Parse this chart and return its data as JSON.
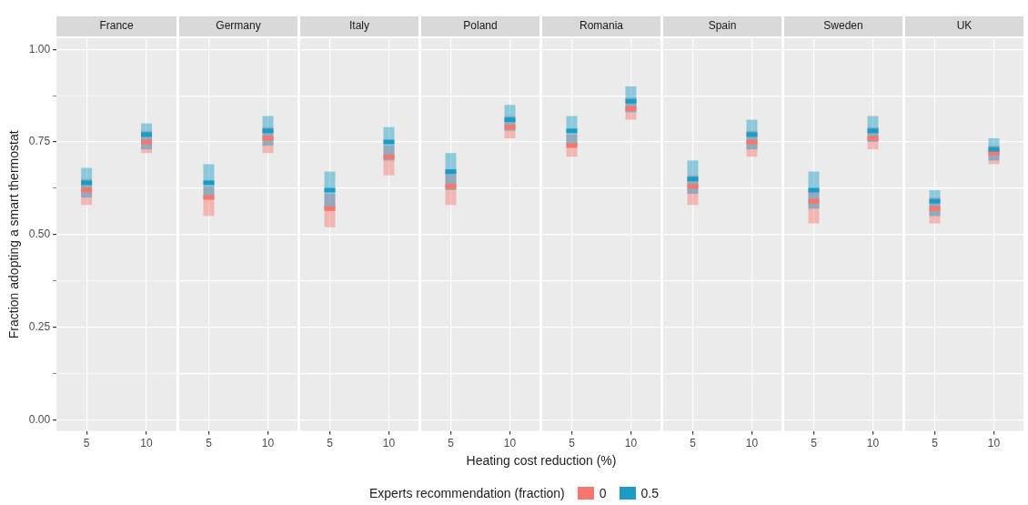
{
  "chart_data": [
    {
      "type": "scatter",
      "marker": "square",
      "title": "France",
      "ylabel": "Fraction adopting a smart thermostat",
      "categories": [
        "5",
        "10"
      ],
      "series": [
        {
          "color": "#f8766d",
          "values": [
            0.62,
            0.75
          ],
          "errors": [
            [
              0.58,
              0.65
            ],
            [
              0.72,
              0.78
            ]
          ]
        },
        {
          "color": "#1a9cc6",
          "values": [
            0.64,
            0.77
          ],
          "errors": [
            [
              0.6,
              0.68
            ],
            [
              0.73,
              0.8
            ]
          ]
        }
      ],
      "ylim": [
        -0.03,
        1.03
      ],
      "yticks": [
        {
          "value": 0,
          "label": "0.00"
        },
        {
          "value": 0.125,
          "label": null
        },
        {
          "value": 0.25,
          "label": "0.25"
        },
        {
          "value": 0.375,
          "label": null
        },
        {
          "value": 0.5,
          "label": "0.50"
        },
        {
          "value": 0.625,
          "label": null
        },
        {
          "value": 0.75,
          "label": "0.75"
        },
        {
          "value": 0.875,
          "label": null
        },
        {
          "value": 1,
          "label": "1.00"
        }
      ],
      "grid": true
    },
    {
      "type": "scatter",
      "marker": "square",
      "title": "Germany",
      "categories": [
        "5",
        "10"
      ],
      "series": [
        {
          "color": "#f8766d",
          "values": [
            0.6,
            0.76
          ],
          "errors": [
            [
              0.55,
              0.63
            ],
            [
              0.72,
              0.79
            ]
          ]
        },
        {
          "color": "#1a9cc6",
          "values": [
            0.64,
            0.78
          ],
          "errors": [
            [
              0.6,
              0.69
            ],
            [
              0.74,
              0.82
            ]
          ]
        }
      ],
      "ylim": [
        -0.03,
        1.03
      ],
      "yticks": [
        0,
        0.125,
        0.25,
        0.375,
        0.5,
        0.625,
        0.75,
        0.875,
        1
      ],
      "grid": true,
      "tick_labels": "x"
    },
    {
      "type": "scatter",
      "marker": "square",
      "title": "Italy",
      "categories": [
        "5",
        "10"
      ],
      "series": [
        {
          "color": "#f8766d",
          "values": [
            0.57,
            0.71
          ],
          "errors": [
            [
              0.52,
              0.61
            ],
            [
              0.66,
              0.74
            ]
          ]
        },
        {
          "color": "#1a9cc6",
          "values": [
            0.62,
            0.75
          ],
          "errors": [
            [
              0.57,
              0.67
            ],
            [
              0.7,
              0.79
            ]
          ]
        }
      ],
      "ylim": [
        -0.03,
        1.03
      ],
      "yticks": [
        0,
        0.125,
        0.25,
        0.375,
        0.5,
        0.625,
        0.75,
        0.875,
        1
      ],
      "grid": true,
      "tick_labels": "x"
    },
    {
      "type": "scatter",
      "marker": "square",
      "title": "Poland",
      "xlabel": "Heating cost reduction (%)",
      "legend": "bottom",
      "legend_title": "Experts recommendation (fraction)",
      "categories": [
        "5",
        "10"
      ],
      "series": [
        {
          "name": "0",
          "color": "#f8766d",
          "values": [
            0.63,
            0.79
          ],
          "errors": [
            [
              0.58,
              0.67
            ],
            [
              0.76,
              0.82
            ]
          ]
        },
        {
          "name": "0.5",
          "color": "#1a9cc6",
          "values": [
            0.67,
            0.81
          ],
          "errors": [
            [
              0.62,
              0.72
            ],
            [
              0.78,
              0.85
            ]
          ]
        }
      ],
      "ylim": [
        -0.03,
        1.03
      ],
      "yticks": [
        0,
        0.125,
        0.25,
        0.375,
        0.5,
        0.625,
        0.75,
        0.875,
        1
      ],
      "grid": true,
      "tick_labels": "x"
    },
    {
      "type": "scatter",
      "marker": "square",
      "title": "Romania",
      "categories": [
        "5",
        "10"
      ],
      "series": [
        {
          "color": "#f8766d",
          "values": [
            0.74,
            0.84
          ],
          "errors": [
            [
              0.71,
              0.77
            ],
            [
              0.81,
              0.87
            ]
          ]
        },
        {
          "color": "#1a9cc6",
          "values": [
            0.78,
            0.86
          ],
          "errors": [
            [
              0.74,
              0.82
            ],
            [
              0.83,
              0.9
            ]
          ]
        }
      ],
      "ylim": [
        -0.03,
        1.03
      ],
      "yticks": [
        0,
        0.125,
        0.25,
        0.375,
        0.5,
        0.625,
        0.75,
        0.875,
        1
      ],
      "grid": true,
      "tick_labels": "x"
    },
    {
      "type": "scatter",
      "marker": "square",
      "title": "Spain",
      "categories": [
        "5",
        "10"
      ],
      "series": [
        {
          "color": "#f8766d",
          "values": [
            0.63,
            0.75
          ],
          "errors": [
            [
              0.58,
              0.66
            ],
            [
              0.71,
              0.78
            ]
          ]
        },
        {
          "color": "#1a9cc6",
          "values": [
            0.65,
            0.77
          ],
          "errors": [
            [
              0.61,
              0.7
            ],
            [
              0.73,
              0.81
            ]
          ]
        }
      ],
      "ylim": [
        -0.03,
        1.03
      ],
      "yticks": [
        0,
        0.125,
        0.25,
        0.375,
        0.5,
        0.625,
        0.75,
        0.875,
        1
      ],
      "grid": true,
      "tick_labels": "x"
    },
    {
      "type": "scatter",
      "marker": "square",
      "title": "Sweden",
      "categories": [
        "5",
        "10"
      ],
      "series": [
        {
          "color": "#f8766d",
          "values": [
            0.59,
            0.76
          ],
          "errors": [
            [
              0.53,
              0.62
            ],
            [
              0.73,
              0.79
            ]
          ]
        },
        {
          "color": "#1a9cc6",
          "values": [
            0.62,
            0.78
          ],
          "errors": [
            [
              0.57,
              0.67
            ],
            [
              0.75,
              0.82
            ]
          ]
        }
      ],
      "ylim": [
        -0.03,
        1.03
      ],
      "yticks": [
        0,
        0.125,
        0.25,
        0.375,
        0.5,
        0.625,
        0.75,
        0.875,
        1
      ],
      "grid": true,
      "tick_labels": "x"
    },
    {
      "type": "scatter",
      "marker": "square",
      "title": "UK",
      "categories": [
        "5",
        "10"
      ],
      "series": [
        {
          "color": "#f8766d",
          "values": [
            0.57,
            0.72
          ],
          "errors": [
            [
              0.53,
              0.6
            ],
            [
              0.69,
              0.74
            ]
          ]
        },
        {
          "color": "#1a9cc6",
          "values": [
            0.59,
            0.73
          ],
          "errors": [
            [
              0.55,
              0.62
            ],
            [
              0.7,
              0.76
            ]
          ]
        }
      ],
      "ylim": [
        -0.03,
        1.03
      ],
      "yticks": [
        0,
        0.125,
        0.25,
        0.375,
        0.5,
        0.625,
        0.75,
        0.875,
        1
      ],
      "grid": true,
      "tick_labels": "x"
    }
  ]
}
